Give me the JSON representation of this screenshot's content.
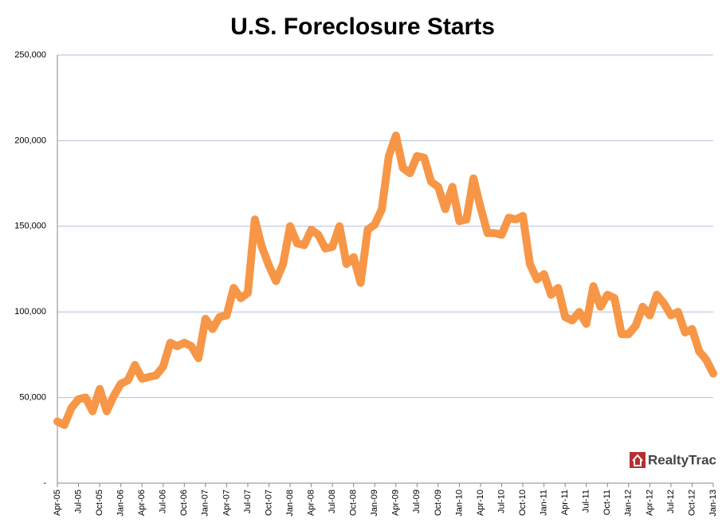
{
  "chart_data": {
    "type": "line",
    "title": "U.S. Foreclosure Starts",
    "logo": "RealtyTrac",
    "categories": [
      "Apr-05",
      null,
      null,
      "Jul-05",
      null,
      null,
      "Oct-05",
      null,
      null,
      "Jan-06",
      null,
      null,
      "Apr-06",
      null,
      null,
      "Jul-06",
      null,
      null,
      "Oct-06",
      null,
      null,
      "Jan-07",
      null,
      null,
      "Apr-07",
      null,
      null,
      "Jul-07",
      null,
      null,
      "Oct-07",
      null,
      null,
      "Jan-08",
      null,
      null,
      "Apr-08",
      null,
      null,
      "Jul-08",
      null,
      null,
      "Oct-08",
      null,
      null,
      "Jan-09",
      null,
      null,
      "Apr-09",
      null,
      null,
      "Jul-09",
      null,
      null,
      "Oct-09",
      null,
      null,
      "Jan-10",
      null,
      null,
      "Apr-10",
      null,
      null,
      "Jul-10",
      null,
      null,
      "Oct-10",
      null,
      null,
      "Jan-11",
      null,
      null,
      "Apr-11",
      null,
      null,
      "Jul-11",
      null,
      null,
      "Oct-11",
      null,
      null,
      "Jan-12",
      null,
      null,
      "Apr-12",
      null,
      null,
      "Jul-12",
      null,
      null,
      "Oct-12",
      null,
      null,
      "Jan-13"
    ],
    "values": [
      36000,
      34000,
      44000,
      49000,
      50000,
      42000,
      55000,
      42000,
      51000,
      58000,
      60000,
      69000,
      61000,
      62000,
      63000,
      68000,
      82000,
      80000,
      82000,
      80000,
      73000,
      96000,
      90000,
      97000,
      98000,
      114000,
      108000,
      111000,
      154000,
      138000,
      127000,
      118000,
      128000,
      150000,
      140000,
      139000,
      148000,
      145000,
      137000,
      138000,
      150000,
      128000,
      132000,
      117000,
      148000,
      151000,
      160000,
      191000,
      203000,
      184000,
      181000,
      191000,
      190000,
      176000,
      173000,
      160000,
      173000,
      153000,
      154000,
      178000,
      161000,
      146000,
      146000,
      145000,
      155000,
      154000,
      156000,
      128000,
      119000,
      122000,
      110000,
      114000,
      97000,
      95000,
      100000,
      93000,
      115000,
      103000,
      110000,
      108000,
      87000,
      87000,
      92000,
      103000,
      98000,
      110000,
      105000,
      98000,
      100000,
      88000,
      90000,
      77000,
      72000,
      64000
    ],
    "color": "#f79646",
    "ylim": [
      0,
      250000
    ],
    "yticks": [
      {
        "value": 0,
        "label": "-"
      },
      {
        "value": 50000,
        "label": "50,000"
      },
      {
        "value": 100000,
        "label": "100,000"
      },
      {
        "value": 150000,
        "label": "150,000"
      },
      {
        "value": 200000,
        "label": "200,000"
      },
      {
        "value": 250000,
        "label": "250,000"
      }
    ],
    "grid": true
  }
}
